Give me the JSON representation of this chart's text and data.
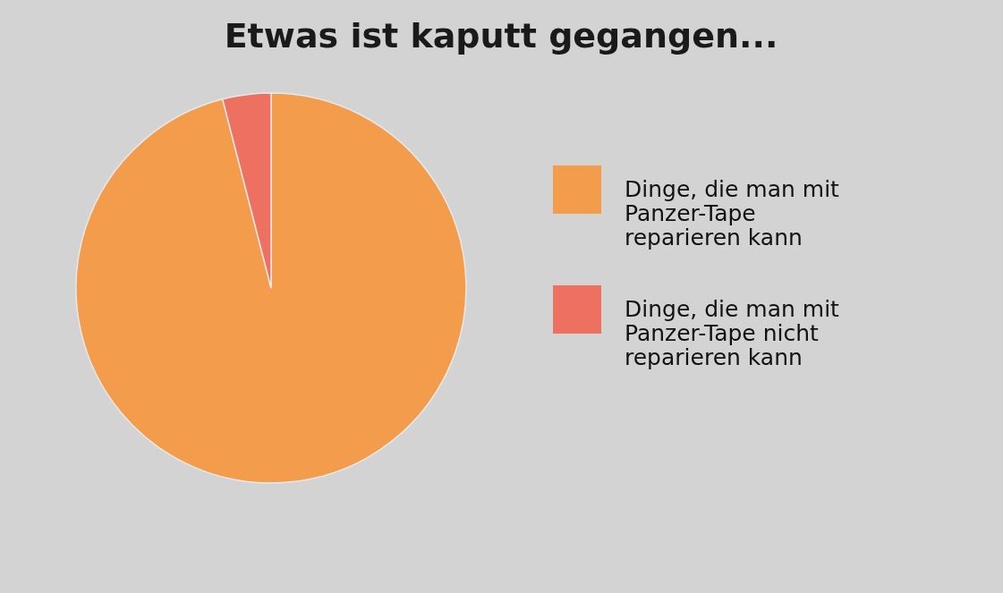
{
  "chart_data": {
    "type": "pie",
    "title": "Etwas ist kaputt gegangen...",
    "categories": [
      "Dinge, die man mit Panzer-Tape reparieren kann",
      "Dinge, die man mit Panzer-Tape nicht reparieren kann"
    ],
    "values": [
      96,
      4
    ],
    "colors": [
      "#f39c4c",
      "#ee7060"
    ],
    "legend": "right"
  }
}
